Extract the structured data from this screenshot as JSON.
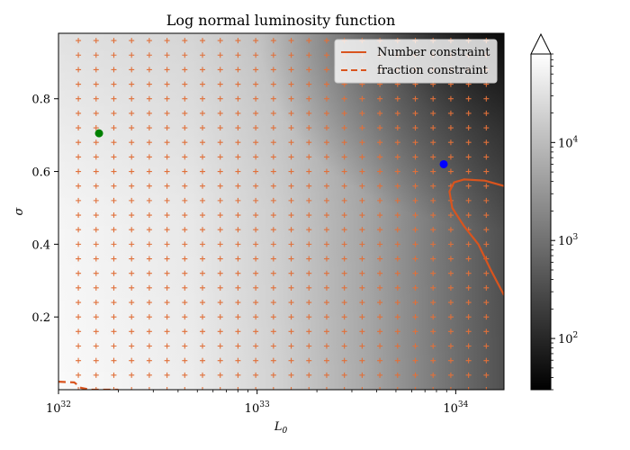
{
  "chart_data": {
    "type": "heatmap",
    "title": "Log normal luminosity function",
    "xlabel": "L₀",
    "ylabel": "σ",
    "x_scale": "log",
    "xlim": [
      1e+32,
      1.75e+34
    ],
    "ylim": [
      0.0,
      0.98
    ],
    "x_ticks": [
      {
        "value": 1e+32,
        "base": "10",
        "exp": "32"
      },
      {
        "value": 1e+33,
        "base": "10",
        "exp": "33"
      },
      {
        "value": 1e+34,
        "base": "10",
        "exp": "34"
      }
    ],
    "y_ticks": [
      {
        "value": 0.2,
        "label": "0.2"
      },
      {
        "value": 0.4,
        "label": "0.4"
      },
      {
        "value": 0.6,
        "label": "0.6"
      },
      {
        "value": 0.8,
        "label": "0.8"
      }
    ],
    "colorbar": {
      "scale": "log",
      "range": [
        30,
        80000
      ],
      "extend": "max",
      "colormap": "gray",
      "ticks": [
        {
          "value": 100,
          "base": "10",
          "exp": "2"
        },
        {
          "value": 1000,
          "base": "10",
          "exp": "3"
        },
        {
          "value": 10000,
          "base": "10",
          "exp": "4"
        }
      ]
    },
    "grid_markers": {
      "symbol": "+",
      "color": "#e0703a",
      "log10_x_start": 32.1,
      "log10_x_step": 0.0893,
      "log10_x_count": 24,
      "y_start": 0.0,
      "y_step": 0.04,
      "y_count": 25
    },
    "points": [
      {
        "name": "green point",
        "x": 1.6e+32,
        "y": 0.705,
        "color": "#008000"
      },
      {
        "name": "blue point",
        "x": 8.7e+33,
        "y": 0.62,
        "color": "#0000ff"
      }
    ],
    "series": [
      {
        "name": "Number constraint",
        "style": "solid",
        "color": "#d9541e",
        "points": [
          [
            1.75e+34,
            0.56
          ],
          [
            1.4e+34,
            0.575
          ],
          [
            1.1e+34,
            0.578
          ],
          [
            9.8e+33,
            0.57
          ],
          [
            9.3e+33,
            0.545
          ],
          [
            9.6e+33,
            0.5
          ],
          [
            1.1e+34,
            0.45
          ],
          [
            1.3e+34,
            0.4
          ],
          [
            1.5e+34,
            0.33
          ],
          [
            1.75e+34,
            0.26
          ]
        ]
      },
      {
        "name": "fraction constraint",
        "style": "dashed",
        "color": "#d9541e",
        "points": [
          [
            1e+32,
            0.022
          ],
          [
            1.2e+32,
            0.02
          ],
          [
            1.3e+32,
            0.005
          ],
          [
            1.45e+32,
            0.0
          ],
          [
            2e+32,
            0.0
          ]
        ]
      }
    ],
    "legend": {
      "position": "top-right"
    }
  },
  "colors": {
    "marker": "#e0703a",
    "contour": "#d9541e",
    "green": "#008000",
    "blue": "#0000ff"
  }
}
